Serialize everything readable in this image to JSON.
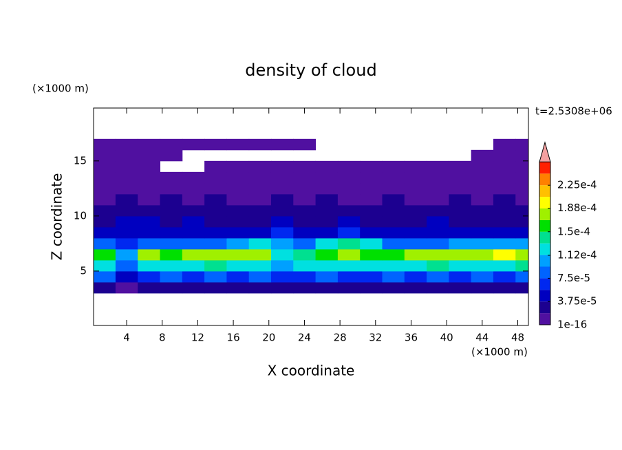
{
  "chart_data": {
    "type": "contour",
    "title": "density of cloud",
    "x_label": "X coordinate",
    "y_label": "Z coordinate",
    "x_unit": "(×1000 m)",
    "y_unit": "(×1000 m)",
    "time_label": "t=2.5308e+06",
    "xlim": [
      0.28,
      49.2
    ],
    "ylim": [
      0.06,
      19.8
    ],
    "xticks": [
      4,
      8,
      12,
      16,
      20,
      24,
      28,
      32,
      36,
      40,
      44,
      48
    ],
    "yticks": [
      5,
      10,
      15
    ],
    "x": [
      1.5,
      4,
      6.5,
      9,
      11.5,
      14,
      16.5,
      19,
      21.5,
      24,
      26.5,
      29,
      31.5,
      34,
      36.5,
      39,
      41.5,
      44,
      46.5,
      49
    ],
    "y": [
      3.5,
      4.5,
      5.5,
      6.5,
      7.5,
      8.5,
      9.5,
      10.5,
      11.5,
      12.5,
      13.5,
      14.5,
      15.5,
      16.5
    ],
    "z": [
      [
        2e-05,
        1.5e-05,
        2.5e-05,
        2.5e-05,
        3e-05,
        2.5e-05,
        2.5e-05,
        2.5e-05,
        2e-05,
        2.5e-05,
        2.5e-05,
        3e-05,
        2e-05,
        2.5e-05,
        2.5e-05,
        2.5e-05,
        3e-05,
        2.5e-05,
        2.5e-05,
        2.5e-05
      ],
      [
        8e-05,
        5e-05,
        7e-05,
        7.5e-05,
        7e-05,
        7.8e-05,
        7e-05,
        7.5e-05,
        6.5e-05,
        7e-05,
        7.5e-05,
        7e-05,
        6.5e-05,
        7.5e-05,
        7e-05,
        7.5e-05,
        7e-05,
        7.8e-05,
        7e-05,
        7.5e-05
      ],
      [
        0.00013,
        9e-05,
        0.000125,
        0.00013,
        0.000125,
        0.000135,
        0.00013,
        0.000125,
        0.00011,
        0.00012,
        0.00013,
        0.000125,
        0.00012,
        0.00013,
        0.000125,
        0.000135,
        0.00013,
        0.000125,
        0.00013,
        0.000135
      ],
      [
        0.00016,
        0.00011,
        0.00017,
        0.000165,
        0.000175,
        0.00017,
        0.000185,
        0.000185,
        0.00012,
        0.00014,
        0.000165,
        0.00017,
        0.00016,
        0.000155,
        0.00017,
        0.000175,
        0.00017,
        0.00018,
        0.00019,
        0.000175
      ],
      [
        9e-05,
        6e-05,
        8e-05,
        8.5e-05,
        8e-05,
        9e-05,
        0.0001,
        0.00012,
        0.0001,
        8e-05,
        0.00013,
        0.000135,
        0.00012,
        8.5e-05,
        8e-05,
        9e-05,
        0.0001,
        0.0001,
        0.0001,
        0.0001
      ],
      [
        4.5e-05,
        4e-05,
        5e-05,
        4.5e-05,
        4e-05,
        4.5e-05,
        5e-05,
        5.5e-05,
        6e-05,
        4.5e-05,
        5e-05,
        7e-05,
        5.5e-05,
        4.5e-05,
        4e-05,
        4.5e-05,
        4.5e-05,
        5e-05,
        4.5e-05,
        4.5e-05
      ],
      [
        3.5e-05,
        5e-05,
        5e-05,
        3.5e-05,
        4e-05,
        3.5e-05,
        3e-05,
        3.5e-05,
        4e-05,
        3.5e-05,
        3e-05,
        4e-05,
        3.5e-05,
        3e-05,
        3.5e-05,
        4e-05,
        3.5e-05,
        3e-05,
        3.5e-05,
        3.5e-05
      ],
      [
        2.5e-05,
        2.5e-05,
        3e-05,
        2.5e-05,
        2e-05,
        2.5e-05,
        2.5e-05,
        2e-05,
        2.5e-05,
        2.5e-05,
        2e-05,
        2.5e-05,
        2.5e-05,
        2e-05,
        2.5e-05,
        2.5e-05,
        2e-05,
        2.5e-05,
        2.5e-05,
        2.5e-05
      ],
      [
        1.6e-05,
        2e-05,
        1.6e-05,
        2e-05,
        1.6e-05,
        2e-05,
        1.6e-05,
        1.6e-05,
        2e-05,
        1.6e-05,
        2e-05,
        1.6e-05,
        1.6e-05,
        2e-05,
        1.6e-05,
        1.6e-05,
        2e-05,
        1.6e-05,
        2e-05,
        1.6e-05
      ],
      [
        1.2e-05,
        1e-05,
        1.2e-05,
        1e-05,
        1e-05,
        1.2e-05,
        1e-05,
        1.2e-05,
        1e-05,
        1.2e-05,
        1e-05,
        1e-05,
        1.2e-05,
        1e-05,
        1.2e-05,
        1e-05,
        1e-05,
        1.2e-05,
        1e-05,
        1.2e-05
      ],
      [
        8e-06,
        8e-06,
        8e-06,
        8e-06,
        8e-06,
        8e-06,
        8e-06,
        8e-06,
        8e-06,
        8e-06,
        8e-06,
        8e-06,
        8e-06,
        8e-06,
        8e-06,
        8e-06,
        8e-06,
        8e-06,
        8e-06,
        8e-06
      ],
      [
        6e-06,
        6e-06,
        6e-06,
        null,
        null,
        6e-06,
        6e-06,
        6e-06,
        6e-06,
        6e-06,
        6e-06,
        6e-06,
        6e-06,
        6e-06,
        6e-06,
        6e-06,
        6e-06,
        6e-06,
        6e-06,
        6e-06
      ],
      [
        4e-06,
        4e-06,
        4e-06,
        4e-06,
        null,
        null,
        null,
        null,
        null,
        null,
        null,
        null,
        null,
        null,
        null,
        null,
        null,
        4e-06,
        4e-06,
        4e-06
      ],
      [
        3e-06,
        3e-06,
        3e-06,
        3e-06,
        3e-06,
        3e-06,
        3e-06,
        3e-06,
        3e-06,
        3e-06,
        null,
        null,
        null,
        null,
        null,
        null,
        null,
        null,
        3e-06,
        3e-06
      ]
    ],
    "levels": [
      1e-16,
      1.875e-05,
      3.75e-05,
      5.625e-05,
      7.5e-05,
      9.375e-05,
      0.0001125,
      0.00013125,
      0.00015,
      0.00016875,
      0.0001875,
      0.00020625,
      0.000225,
      0.00024375,
      0.0002625
    ],
    "colors": [
      "#5010a0",
      "#1c0090",
      "#0000c0",
      "#0028f0",
      "#0064ff",
      "#00a0ff",
      "#00e0e0",
      "#00e090",
      "#00e000",
      "#a0f000",
      "#ffff00",
      "#ffc000",
      "#ff8000",
      "#ff2000"
    ],
    "extend_color": "#f4a0a0",
    "colorbar_ticks": [
      1e-16,
      {
        "value": 3.75e-05,
        "label": "3.75e-5"
      },
      {
        "value": 7.5e-05,
        "label": "7.5e-5"
      },
      {
        "value": 0.000112,
        "label": "1.12e-4"
      },
      {
        "value": 0.00015,
        "label": "1.5e-4"
      },
      {
        "value": 0.000188,
        "label": "1.88e-4"
      },
      {
        "value": 0.000225,
        "label": "2.25e-4"
      }
    ]
  }
}
